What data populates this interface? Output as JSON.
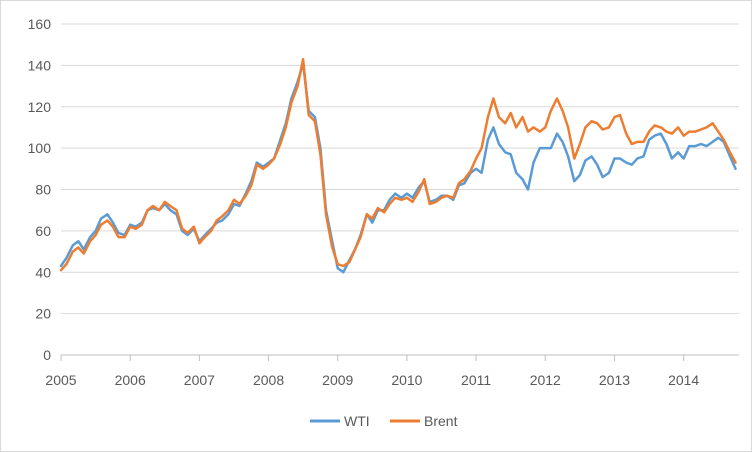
{
  "chart_data": {
    "type": "line",
    "title": "",
    "xlabel": "",
    "ylabel": "",
    "xlim": [
      2005.0,
      2014.8
    ],
    "ylim": [
      0,
      160
    ],
    "y_ticks": [
      0,
      20,
      40,
      60,
      80,
      100,
      120,
      140,
      160
    ],
    "x_ticks": [
      2005,
      2006,
      2007,
      2008,
      2009,
      2010,
      2011,
      2012,
      2013,
      2014
    ],
    "x_tick_labels": [
      "2005",
      "2006",
      "2007",
      "2008",
      "2009",
      "2010",
      "2011",
      "2012",
      "2013",
      "2014"
    ],
    "grid": "horizontal",
    "legend_position": "bottom",
    "series": [
      {
        "name": "WTI",
        "color": "#5b9bd5",
        "x": [
          2005.0,
          2005.08,
          2005.17,
          2005.25,
          2005.33,
          2005.42,
          2005.5,
          2005.58,
          2005.67,
          2005.75,
          2005.83,
          2005.92,
          2006.0,
          2006.08,
          2006.17,
          2006.25,
          2006.33,
          2006.42,
          2006.5,
          2006.58,
          2006.67,
          2006.75,
          2006.83,
          2006.92,
          2007.0,
          2007.08,
          2007.17,
          2007.25,
          2007.33,
          2007.42,
          2007.5,
          2007.58,
          2007.67,
          2007.75,
          2007.83,
          2007.92,
          2008.0,
          2008.08,
          2008.17,
          2008.25,
          2008.33,
          2008.42,
          2008.5,
          2008.58,
          2008.67,
          2008.75,
          2008.83,
          2008.92,
          2009.0,
          2009.08,
          2009.17,
          2009.25,
          2009.33,
          2009.42,
          2009.5,
          2009.58,
          2009.67,
          2009.75,
          2009.83,
          2009.92,
          2010.0,
          2010.08,
          2010.17,
          2010.25,
          2010.33,
          2010.42,
          2010.5,
          2010.58,
          2010.67,
          2010.75,
          2010.83,
          2010.92,
          2011.0,
          2011.08,
          2011.17,
          2011.25,
          2011.33,
          2011.42,
          2011.5,
          2011.58,
          2011.67,
          2011.75,
          2011.83,
          2011.92,
          2012.0,
          2012.08,
          2012.17,
          2012.25,
          2012.33,
          2012.42,
          2012.5,
          2012.58,
          2012.67,
          2012.75,
          2012.83,
          2012.92,
          2013.0,
          2013.08,
          2013.17,
          2013.25,
          2013.33,
          2013.42,
          2013.5,
          2013.58,
          2013.67,
          2013.75,
          2013.83,
          2013.92,
          2014.0,
          2014.08,
          2014.17,
          2014.25,
          2014.33,
          2014.42,
          2014.5,
          2014.58,
          2014.67,
          2014.75
        ],
        "values": [
          43,
          47,
          53,
          55,
          51,
          57,
          60,
          66,
          68,
          64,
          59,
          58,
          63,
          62,
          64,
          70,
          71,
          70,
          73,
          70,
          68,
          60,
          58,
          61,
          55,
          58,
          61,
          64,
          65,
          68,
          73,
          72,
          78,
          84,
          93,
          91,
          93,
          95,
          104,
          112,
          124,
          132,
          141,
          118,
          115,
          100,
          70,
          55,
          42,
          40,
          46,
          51,
          58,
          68,
          64,
          70,
          70,
          75,
          78,
          76,
          78,
          76,
          81,
          84,
          74,
          75,
          77,
          77,
          75,
          82,
          83,
          88,
          90,
          88,
          104,
          110,
          102,
          98,
          97,
          88,
          85,
          80,
          93,
          100,
          100,
          100,
          107,
          103,
          96,
          84,
          87,
          94,
          96,
          92,
          86,
          88,
          95,
          95,
          93,
          92,
          95,
          96,
          104,
          106,
          107,
          102,
          95,
          98,
          95,
          101,
          101,
          102,
          101,
          103,
          105,
          103,
          96,
          90
        ]
      },
      {
        "name": "Brent",
        "color": "#ed7d31",
        "x": [
          2005.0,
          2005.08,
          2005.17,
          2005.25,
          2005.33,
          2005.42,
          2005.5,
          2005.58,
          2005.67,
          2005.75,
          2005.83,
          2005.92,
          2006.0,
          2006.08,
          2006.17,
          2006.25,
          2006.33,
          2006.42,
          2006.5,
          2006.58,
          2006.67,
          2006.75,
          2006.83,
          2006.92,
          2007.0,
          2007.08,
          2007.17,
          2007.25,
          2007.33,
          2007.42,
          2007.5,
          2007.58,
          2007.67,
          2007.75,
          2007.83,
          2007.92,
          2008.0,
          2008.08,
          2008.17,
          2008.25,
          2008.33,
          2008.42,
          2008.5,
          2008.58,
          2008.67,
          2008.75,
          2008.83,
          2008.92,
          2009.0,
          2009.08,
          2009.17,
          2009.25,
          2009.33,
          2009.42,
          2009.5,
          2009.58,
          2009.67,
          2009.75,
          2009.83,
          2009.92,
          2010.0,
          2010.08,
          2010.17,
          2010.25,
          2010.33,
          2010.42,
          2010.5,
          2010.58,
          2010.67,
          2010.75,
          2010.83,
          2010.92,
          2011.0,
          2011.08,
          2011.17,
          2011.25,
          2011.33,
          2011.42,
          2011.5,
          2011.58,
          2011.67,
          2011.75,
          2011.83,
          2011.92,
          2012.0,
          2012.08,
          2012.17,
          2012.25,
          2012.33,
          2012.42,
          2012.5,
          2012.58,
          2012.67,
          2012.75,
          2012.83,
          2012.92,
          2013.0,
          2013.08,
          2013.17,
          2013.25,
          2013.33,
          2013.42,
          2013.5,
          2013.58,
          2013.67,
          2013.75,
          2013.83,
          2013.92,
          2014.0,
          2014.08,
          2014.17,
          2014.25,
          2014.33,
          2014.42,
          2014.5,
          2014.58,
          2014.67,
          2014.75
        ],
        "values": [
          41,
          44,
          50,
          52,
          49,
          55,
          58,
          63,
          65,
          62,
          57,
          57,
          62,
          61,
          63,
          70,
          72,
          70,
          74,
          72,
          70,
          61,
          59,
          62,
          54,
          57,
          60,
          65,
          67,
          70,
          75,
          73,
          77,
          82,
          92,
          90,
          92,
          95,
          102,
          110,
          122,
          130,
          143,
          116,
          113,
          97,
          68,
          52,
          44,
          43,
          45,
          51,
          57,
          68,
          66,
          71,
          69,
          73,
          76,
          75,
          76,
          74,
          79,
          85,
          73,
          74,
          76,
          77,
          76,
          83,
          85,
          89,
          95,
          100,
          115,
          124,
          115,
          112,
          117,
          110,
          115,
          108,
          110,
          108,
          110,
          118,
          124,
          118,
          110,
          95,
          102,
          110,
          113,
          112,
          109,
          110,
          115,
          116,
          107,
          102,
          103,
          103,
          108,
          111,
          110,
          108,
          107,
          110,
          106,
          108,
          108,
          109,
          110,
          112,
          108,
          104,
          98,
          93
        ]
      }
    ]
  }
}
